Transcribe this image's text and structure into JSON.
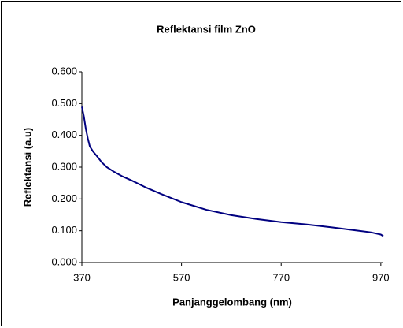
{
  "chart_data": {
    "type": "line",
    "title": "Reflektansi  film ZnO",
    "x_label": "Panjanggelombang (nm)",
    "y_label": "Reflektansi (a.u)",
    "x": [
      370,
      374,
      378,
      382,
      386,
      392,
      400,
      410,
      420,
      435,
      450,
      470,
      500,
      530,
      570,
      620,
      670,
      720,
      770,
      820,
      870,
      920,
      950,
      970,
      975
    ],
    "series": [
      {
        "name": "Reflektansi",
        "color": "#000080",
        "values": [
          0.49,
          0.46,
          0.42,
          0.39,
          0.365,
          0.35,
          0.335,
          0.315,
          0.3,
          0.285,
          0.272,
          0.258,
          0.235,
          0.215,
          0.19,
          0.166,
          0.149,
          0.137,
          0.127,
          0.12,
          0.111,
          0.101,
          0.095,
          0.088,
          0.083
        ]
      }
    ],
    "xlim": [
      370,
      975
    ],
    "xticks": [
      370,
      570,
      770,
      970
    ],
    "ylim": [
      0,
      0.6
    ],
    "yticks": [
      {
        "value": 0,
        "label": "0.000"
      },
      {
        "value": 0.1,
        "label": "0.100"
      },
      {
        "value": 0.2,
        "label": "0.200"
      },
      {
        "value": 0.3,
        "label": "0.300"
      },
      {
        "value": 0.4,
        "label": "0.400"
      },
      {
        "value": 0.5,
        "label": "0.500"
      },
      {
        "value": 0.6,
        "label": "0.600"
      }
    ],
    "grid": false
  }
}
